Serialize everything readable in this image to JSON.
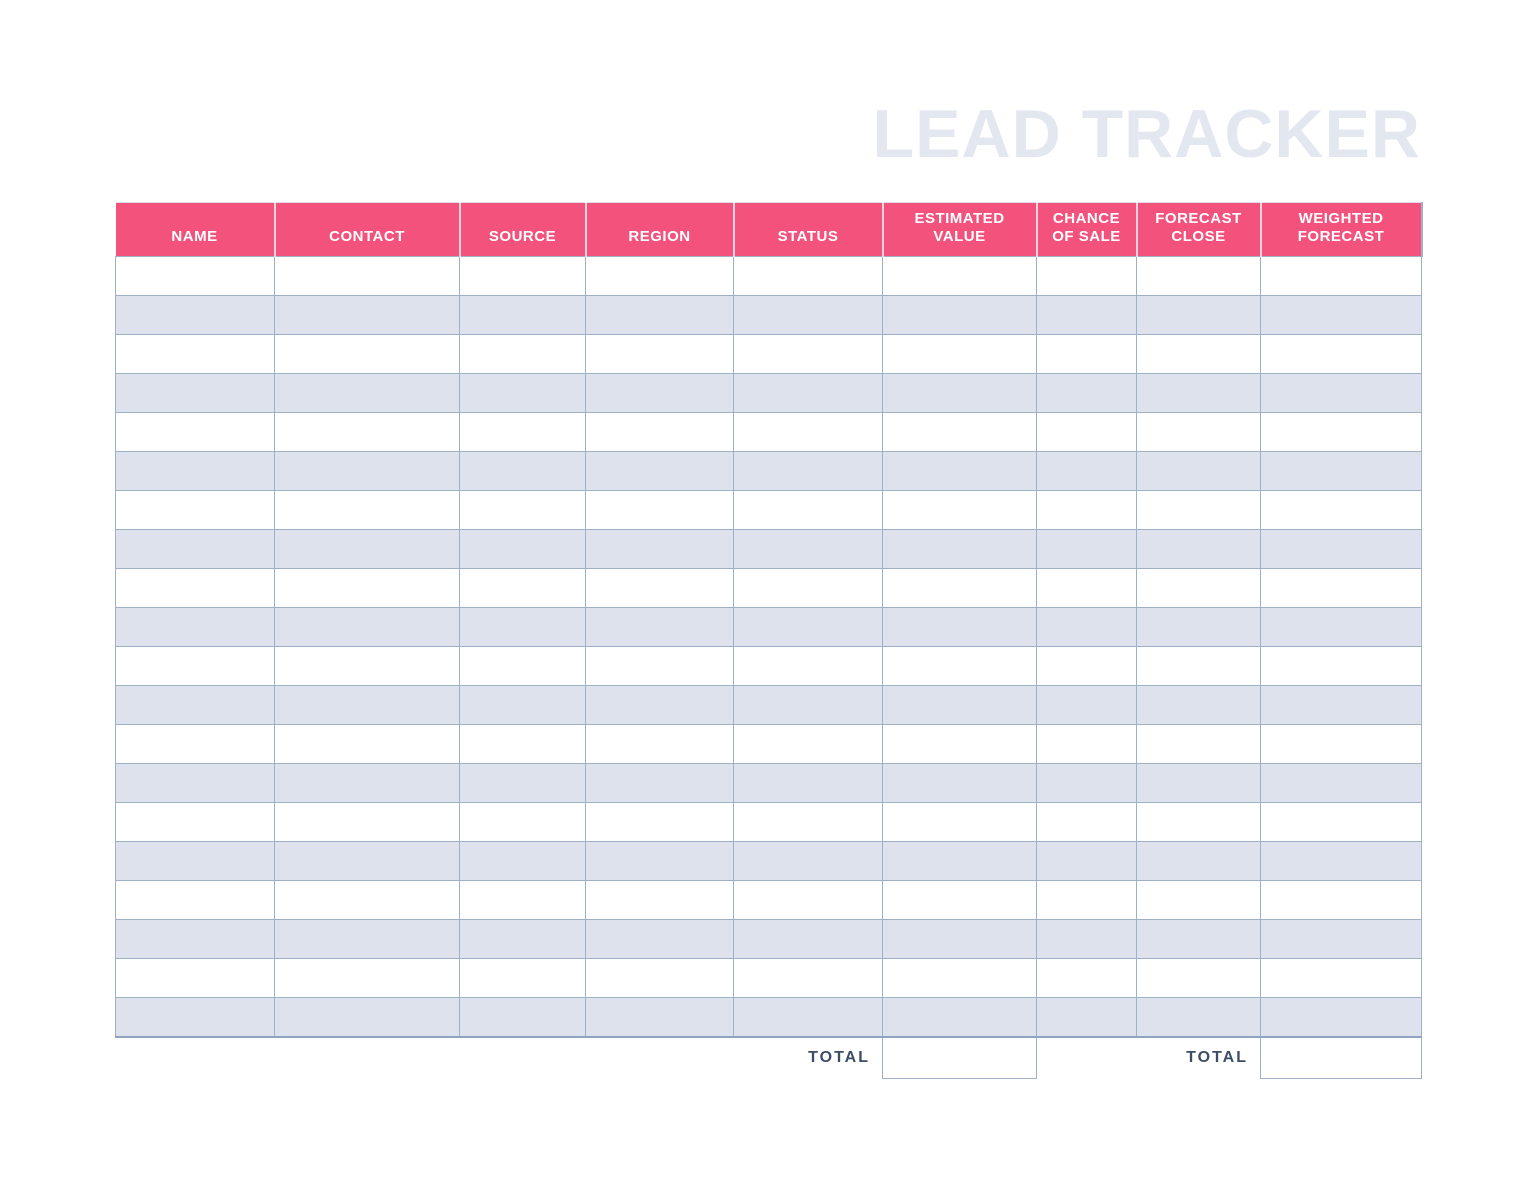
{
  "page": {
    "title": "LEAD TRACKER"
  },
  "table": {
    "columns": [
      {
        "key": "name",
        "label": "NAME"
      },
      {
        "key": "contact",
        "label": "CONTACT"
      },
      {
        "key": "source",
        "label": "SOURCE"
      },
      {
        "key": "region",
        "label": "REGION"
      },
      {
        "key": "status",
        "label": "STATUS"
      },
      {
        "key": "estimated_value",
        "label": "ESTIMATED VALUE"
      },
      {
        "key": "chance_of_sale",
        "label": "CHANCE OF SALE"
      },
      {
        "key": "forecast_close",
        "label": "FORECAST CLOSE"
      },
      {
        "key": "weighted_forecast",
        "label": "WEIGHTED FORECAST"
      }
    ],
    "rows": [
      [
        "",
        "",
        "",
        "",
        "",
        "",
        "",
        "",
        ""
      ],
      [
        "",
        "",
        "",
        "",
        "",
        "",
        "",
        "",
        ""
      ],
      [
        "",
        "",
        "",
        "",
        "",
        "",
        "",
        "",
        ""
      ],
      [
        "",
        "",
        "",
        "",
        "",
        "",
        "",
        "",
        ""
      ],
      [
        "",
        "",
        "",
        "",
        "",
        "",
        "",
        "",
        ""
      ],
      [
        "",
        "",
        "",
        "",
        "",
        "",
        "",
        "",
        ""
      ],
      [
        "",
        "",
        "",
        "",
        "",
        "",
        "",
        "",
        ""
      ],
      [
        "",
        "",
        "",
        "",
        "",
        "",
        "",
        "",
        ""
      ],
      [
        "",
        "",
        "",
        "",
        "",
        "",
        "",
        "",
        ""
      ],
      [
        "",
        "",
        "",
        "",
        "",
        "",
        "",
        "",
        ""
      ],
      [
        "",
        "",
        "",
        "",
        "",
        "",
        "",
        "",
        ""
      ],
      [
        "",
        "",
        "",
        "",
        "",
        "",
        "",
        "",
        ""
      ],
      [
        "",
        "",
        "",
        "",
        "",
        "",
        "",
        "",
        ""
      ],
      [
        "",
        "",
        "",
        "",
        "",
        "",
        "",
        "",
        ""
      ],
      [
        "",
        "",
        "",
        "",
        "",
        "",
        "",
        "",
        ""
      ],
      [
        "",
        "",
        "",
        "",
        "",
        "",
        "",
        "",
        ""
      ],
      [
        "",
        "",
        "",
        "",
        "",
        "",
        "",
        "",
        ""
      ],
      [
        "",
        "",
        "",
        "",
        "",
        "",
        "",
        "",
        ""
      ],
      [
        "",
        "",
        "",
        "",
        "",
        "",
        "",
        "",
        ""
      ],
      [
        "",
        "",
        "",
        "",
        "",
        "",
        "",
        "",
        ""
      ]
    ],
    "active_cell": {
      "row_index": 3,
      "column_index": 0
    },
    "totals": {
      "estimated": {
        "label": "TOTAL",
        "value": ""
      },
      "weighted": {
        "label": "TOTAL",
        "value": ""
      }
    }
  },
  "colors": {
    "header_bg": "#F2527C",
    "header_text": "#FFFFFF",
    "row_bg": "#FFFFFF",
    "row_alt_bg": "#DDE2ED",
    "active_cell_bg": "#E7EAF3",
    "grid_border": "#9FB1C9",
    "title_text": "#E3E7F0",
    "total_text": "#3C4D66"
  }
}
